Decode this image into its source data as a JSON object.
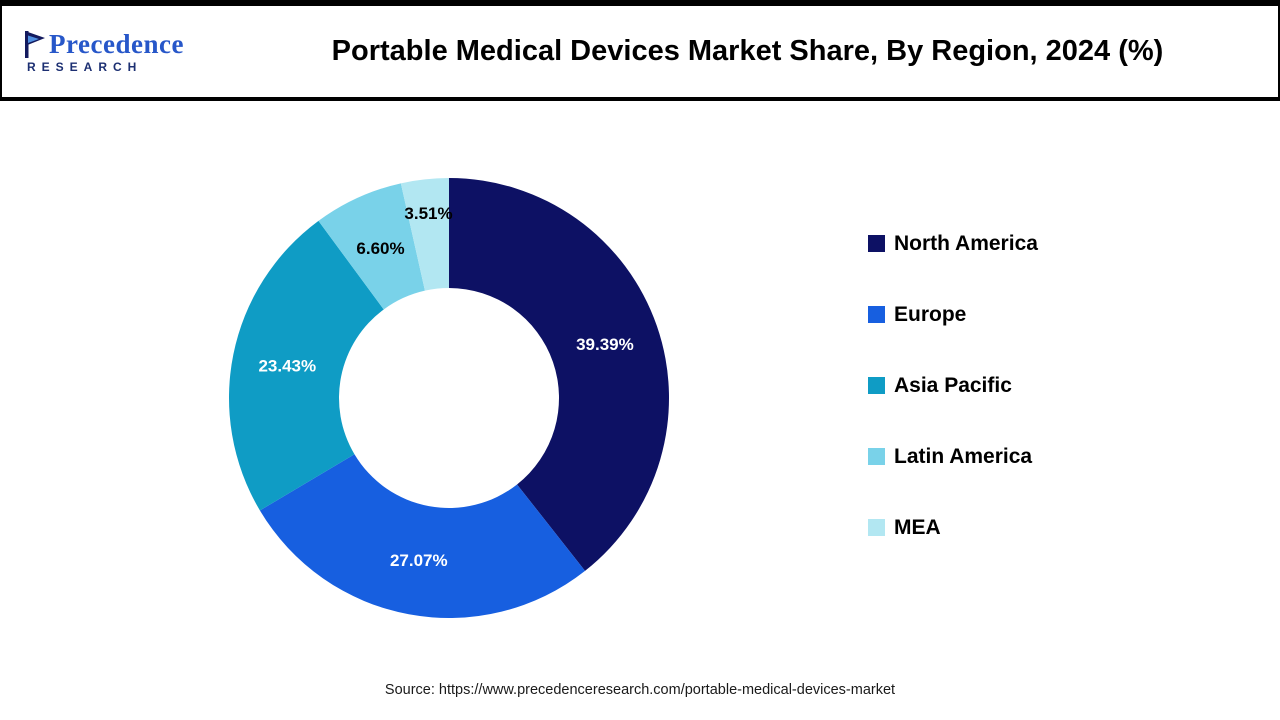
{
  "header": {
    "title": "Portable Medical Devices Market Share, By Region, 2024 (%)",
    "logo": {
      "text": "Precedence",
      "subtext": "RESEARCH"
    }
  },
  "chart_data": {
    "type": "pie",
    "donut": true,
    "title": "Portable Medical Devices Market Share, By Region, 2024 (%)",
    "start_angle_deg": 0,
    "direction": "clockwise",
    "legend_position": "right",
    "slices": [
      {
        "label": "North America",
        "value": 39.39,
        "display": "39.39%",
        "color": "#0d1164",
        "label_color": "#ffffff"
      },
      {
        "label": "Europe",
        "value": 27.07,
        "display": "27.07%",
        "color": "#175fe0",
        "label_color": "#ffffff"
      },
      {
        "label": "Asia Pacific",
        "value": 23.43,
        "display": "23.43%",
        "color": "#0f9cc5",
        "label_color": "#ffffff"
      },
      {
        "label": "Latin America",
        "value": 6.6,
        "display": "6.60%",
        "color": "#79d2e9",
        "label_color": "#000000"
      },
      {
        "label": "MEA",
        "value": 3.51,
        "display": "3.51%",
        "color": "#b2e7f2",
        "label_color": "#000000"
      }
    ]
  },
  "footer": {
    "source": "Source: https://www.precedenceresearch.com/portable-medical-devices-market"
  }
}
